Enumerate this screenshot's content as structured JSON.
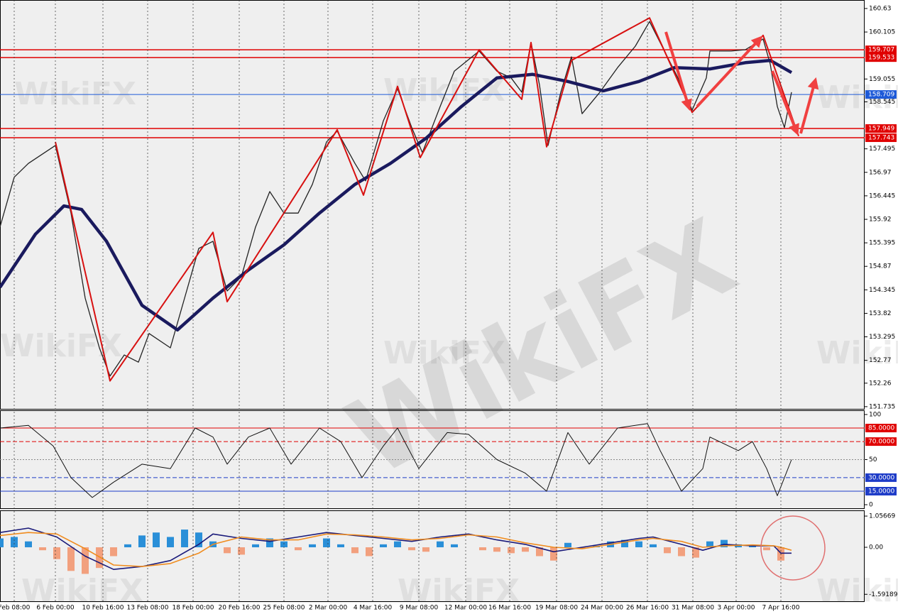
{
  "watermark": "WikiFX",
  "chart_data": [
    {
      "type": "line",
      "xlim": [
        0,
        304.5
      ],
      "ylim": [
        151.67,
        160.82
      ],
      "yticks": [
        160.63,
        160.105,
        159.055,
        158.545,
        157.495,
        156.97,
        156.445,
        155.92,
        155.395,
        154.87,
        154.345,
        153.82,
        153.295,
        152.77,
        152.26,
        151.735
      ],
      "levels": [
        {
          "value": 159.707,
          "color": "#e00000"
        },
        {
          "value": 159.533,
          "color": "#e00000"
        },
        {
          "value": 158.709,
          "color": "#1e5ad8"
        },
        {
          "value": 157.949,
          "color": "#e00000"
        },
        {
          "value": 157.743,
          "color": "#e00000"
        }
      ],
      "series": [
        {
          "color": "#222222",
          "width": 1.3,
          "x": [
            0,
            5,
            10,
            19.5,
            25,
            30,
            35,
            38.75,
            43.75,
            48.75,
            52.5,
            60,
            65,
            70,
            75,
            80,
            85,
            90,
            95,
            100,
            105,
            110,
            115,
            118.75,
            125,
            128.75,
            135,
            140,
            145,
            148.75,
            155,
            160,
            168.75,
            175,
            180,
            183.75,
            187,
            190,
            193,
            197.5,
            201.25,
            205,
            211.25,
            217.5,
            223.75,
            228.75,
            233.75,
            238.75,
            243.75,
            248.75,
            250,
            257.5,
            262.5,
            268.75,
            271.25,
            273.75,
            276.25,
            278.75
          ],
          "values": [
            155.75,
            156.86,
            157.17,
            157.57,
            156.06,
            154.16,
            153.05,
            152.42,
            152.89,
            152.73,
            153.37,
            153.05,
            154.16,
            155.27,
            155.43,
            154.32,
            154.64,
            155.75,
            156.54,
            156.06,
            156.06,
            156.7,
            157.65,
            157.89,
            157.17,
            156.78,
            158.12,
            158.84,
            157.97,
            157.41,
            158.44,
            159.23,
            159.68,
            159.23,
            159.08,
            158.76,
            159.87,
            158.92,
            157.57,
            158.76,
            159.55,
            158.28,
            158.76,
            159.31,
            159.79,
            160.34,
            159.71,
            159.08,
            158.36,
            159.08,
            159.68,
            159.68,
            159.71,
            159.95,
            159.39,
            158.44,
            157.97,
            158.76
          ]
        },
        {
          "color": "#1a1a5e",
          "width": 4.5,
          "x": [
            0,
            12.5,
            22.5,
            28.75,
            37.5,
            50,
            62.5,
            75,
            87.5,
            100,
            112.5,
            125,
            137.5,
            150,
            162.5,
            175,
            187.5,
            200,
            212.5,
            225,
            237.5,
            250,
            262.5,
            271.25,
            278.75
          ],
          "values": [
            154.4,
            155.59,
            156.22,
            156.14,
            155.43,
            154.0,
            153.45,
            154.16,
            154.79,
            155.35,
            156.06,
            156.7,
            157.17,
            157.73,
            158.44,
            159.08,
            159.16,
            159.0,
            158.79,
            159.0,
            159.31,
            159.28,
            159.42,
            159.47,
            159.2
          ]
        },
        {
          "color": "#d81010",
          "width": 2,
          "x": [
            19.5,
            38.75,
            75,
            80,
            118.75,
            128,
            140,
            148,
            168.75,
            183.75,
            187,
            192.5,
            201.25,
            228.75,
            243.75,
            268.75,
            281.25
          ],
          "values": [
            157.65,
            152.31,
            155.63,
            154.08,
            157.92,
            156.46,
            158.89,
            157.3,
            159.71,
            158.6,
            159.87,
            157.54,
            159.47,
            160.42,
            158.31,
            160.03,
            157.78
          ]
        }
      ]
    },
    {
      "type": "line",
      "xlim": [
        0,
        304.5
      ],
      "ylim": [
        -4.7,
        104.7
      ],
      "yticks": [
        100,
        50,
        0
      ],
      "levels": [
        {
          "value": 85,
          "label": "85.0000",
          "color": "#e00000",
          "style": "solid"
        },
        {
          "value": 70,
          "label": "70.0000",
          "color": "#e00000",
          "style": "dash"
        },
        {
          "value": 30,
          "label": "30.0000",
          "color": "#1e3cc8",
          "style": "dash"
        },
        {
          "value": 15,
          "label": "15.0000",
          "color": "#1e3cc8",
          "style": "solid"
        }
      ],
      "series": [
        {
          "color": "#111111",
          "width": 1,
          "x": [
            0,
            10,
            18.75,
            25,
            32.5,
            40,
            50,
            60,
            68.75,
            75,
            80,
            87.5,
            95,
            102.5,
            112.5,
            120,
            127.5,
            135,
            140,
            147.5,
            157.5,
            165,
            175,
            185,
            192.5,
            200,
            207.5,
            217.5,
            228,
            232.5,
            240,
            247.5,
            250,
            260,
            265,
            270,
            273.75,
            276.25,
            278.75
          ],
          "values": [
            85,
            88,
            65,
            30,
            8,
            25,
            45,
            40,
            85,
            75,
            45,
            75,
            85,
            45,
            85,
            70,
            30,
            65,
            85,
            40,
            80,
            78,
            50,
            35,
            15,
            80,
            45,
            85,
            90,
            60,
            15,
            40,
            75,
            60,
            70,
            40,
            10,
            30,
            50
          ]
        }
      ]
    },
    {
      "type": "combo",
      "xlim": [
        0,
        304.5
      ],
      "ylim": [
        -1.85,
        1.25
      ],
      "yticks": [
        1.05669,
        {
          "value": 0,
          "label": "0.00"
        },
        -1.59189
      ],
      "series": [
        {
          "kind": "bar",
          "color": "#2a8fd8",
          "negative_color": "#f2a07e",
          "x": [
            0,
            5,
            10,
            15,
            20,
            25,
            30,
            35,
            40,
            45,
            50,
            55,
            60,
            65,
            70,
            75,
            80,
            85,
            90,
            95,
            100,
            105,
            110,
            115,
            120,
            125,
            130,
            135,
            140,
            145,
            150,
            155,
            160,
            165,
            170,
            175,
            180,
            185,
            190,
            195,
            200,
            205,
            210,
            215,
            220,
            225,
            230,
            235,
            240,
            245,
            250,
            255,
            260,
            265,
            270,
            275
          ],
          "values": [
            0.3,
            0.35,
            0.2,
            -0.1,
            -0.4,
            -0.8,
            -0.9,
            -0.7,
            -0.3,
            0.1,
            0.4,
            0.5,
            0.35,
            0.6,
            0.5,
            0.2,
            -0.2,
            -0.25,
            0.1,
            0.3,
            0.2,
            -0.1,
            0.1,
            0.3,
            0.1,
            -0.2,
            -0.3,
            0.1,
            0.2,
            -0.1,
            -0.15,
            0.2,
            0.1,
            0.0,
            -0.1,
            -0.15,
            -0.2,
            -0.15,
            -0.3,
            -0.45,
            0.15,
            -0.05,
            0.05,
            0.2,
            0.25,
            0.2,
            0.1,
            -0.2,
            -0.3,
            -0.35,
            0.2,
            0.25,
            0.1,
            0.05,
            -0.1,
            -0.45
          ]
        },
        {
          "kind": "line",
          "color": "#1a1a7a",
          "width": 1.6,
          "x": [
            0,
            10,
            20,
            30,
            40,
            50,
            60,
            70,
            75,
            85,
            95,
            105,
            115,
            125,
            135,
            145,
            155,
            165,
            175,
            185,
            195,
            205,
            215,
            225,
            230,
            240,
            247.5,
            255,
            265,
            272.5,
            275,
            278.75
          ],
          "values": [
            0.5,
            0.65,
            0.35,
            -0.3,
            -0.75,
            -0.65,
            -0.45,
            0.1,
            0.45,
            0.3,
            0.2,
            0.35,
            0.5,
            0.4,
            0.3,
            0.2,
            0.35,
            0.45,
            0.25,
            0.1,
            -0.15,
            0.0,
            0.15,
            0.3,
            0.35,
            0.1,
            -0.1,
            0.1,
            0.05,
            0.05,
            -0.2,
            -0.2
          ]
        },
        {
          "kind": "line",
          "color": "#f08c1e",
          "width": 1.6,
          "x": [
            0,
            10,
            20,
            30,
            40,
            50,
            60,
            70,
            75,
            85,
            95,
            105,
            115,
            125,
            135,
            145,
            155,
            165,
            175,
            185,
            195,
            205,
            215,
            225,
            230,
            240,
            247.5,
            255,
            265,
            272.5,
            275,
            278.75
          ],
          "values": [
            0.4,
            0.5,
            0.45,
            -0.05,
            -0.6,
            -0.65,
            -0.55,
            -0.2,
            0.1,
            0.35,
            0.25,
            0.25,
            0.45,
            0.42,
            0.35,
            0.25,
            0.3,
            0.42,
            0.35,
            0.15,
            0.0,
            -0.05,
            0.1,
            0.25,
            0.3,
            0.2,
            0.0,
            0.05,
            0.08,
            0.05,
            0.0,
            -0.1
          ]
        }
      ],
      "grid": true,
      "xticks": [
        {
          "value": 5,
          "label": "Feb 08:00"
        },
        {
          "value": 19.5,
          "label": "6 Feb 00:00"
        },
        {
          "value": 36.25,
          "label": "10 Feb 16:00"
        },
        {
          "value": 52,
          "label": "13 Feb 08:00"
        },
        {
          "value": 68,
          "label": "18 Feb 00:00"
        },
        {
          "value": 84.25,
          "label": "20 Feb 16:00"
        },
        {
          "value": 100,
          "label": "25 Feb 08:00"
        },
        {
          "value": 115.5,
          "label": "2 Mar 00:00"
        },
        {
          "value": 131.25,
          "label": "4 Mar 16:00"
        },
        {
          "value": 147.5,
          "label": "9 Mar 08:00"
        },
        {
          "value": 164,
          "label": "12 Mar 00:00"
        },
        {
          "value": 179.5,
          "label": "16 Mar 16:00"
        },
        {
          "value": 196,
          "label": "19 Mar 08:00"
        },
        {
          "value": 212,
          "label": "24 Mar 00:00"
        },
        {
          "value": 228,
          "label": "26 Mar 16:00"
        },
        {
          "value": 244,
          "label": "31 Mar 08:00"
        },
        {
          "value": 259.25,
          "label": "3 Apr 00:00"
        },
        {
          "value": 275,
          "label": "7 Apr 16:00"
        }
      ]
    }
  ]
}
